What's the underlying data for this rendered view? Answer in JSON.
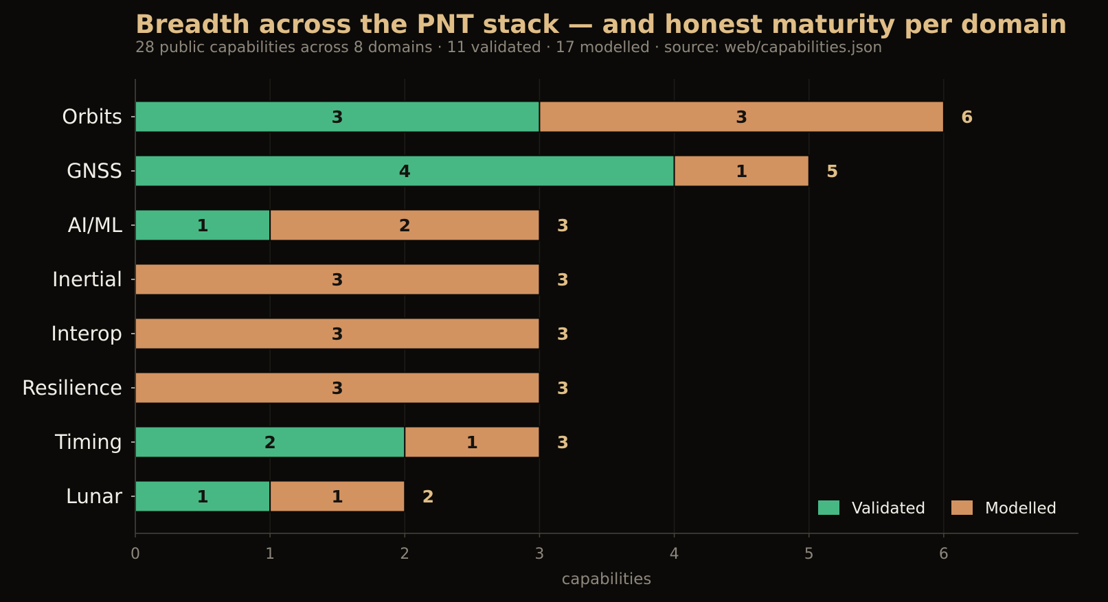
{
  "chart_data": {
    "type": "bar",
    "orientation": "horizontal",
    "stacked": true,
    "title": "Breadth across the PNT stack — and honest maturity per domain",
    "subtitle": "28 public capabilities across 8 domains  ·  11 validated · 17 modelled  ·  source: web/capabilities.json",
    "xlabel": "capabilities",
    "ylabel": "",
    "xlim": [
      0,
      7
    ],
    "xticks": [
      0,
      1,
      2,
      3,
      4,
      5,
      6
    ],
    "grid": true,
    "legend": "bottom-right",
    "categories": [
      "Orbits",
      "GNSS",
      "AI/ML",
      "Inertial",
      "Interop",
      "Resilience",
      "Timing",
      "Lunar"
    ],
    "totals": [
      6,
      5,
      3,
      3,
      3,
      3,
      3,
      2
    ],
    "series": [
      {
        "name": "Validated",
        "color": "#47b884",
        "values": [
          3,
          4,
          1,
          0,
          0,
          0,
          2,
          1
        ]
      },
      {
        "name": "Modelled",
        "color": "#d29361",
        "values": [
          3,
          1,
          2,
          3,
          3,
          3,
          1,
          1
        ]
      }
    ]
  }
}
